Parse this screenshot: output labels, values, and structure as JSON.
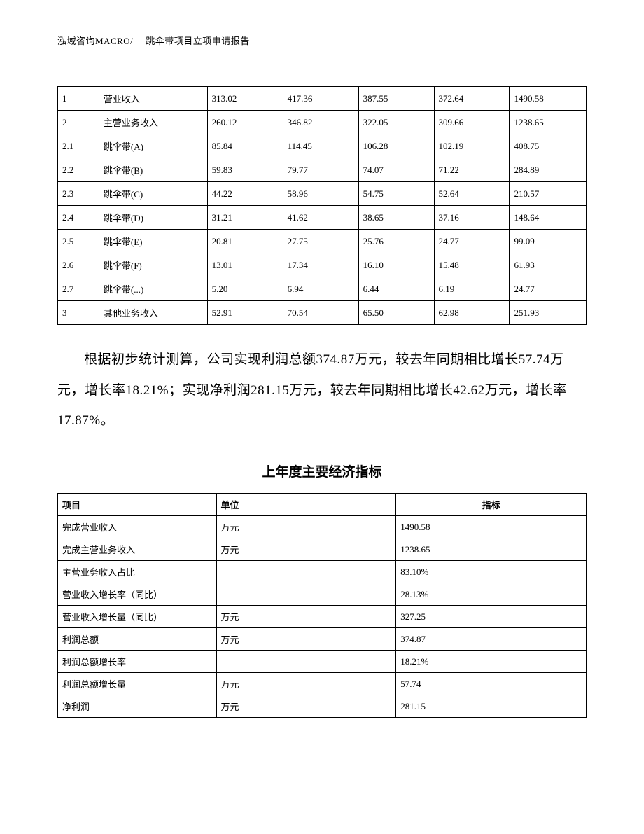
{
  "header": {
    "left": "泓域咨询MACRO/",
    "right": "跳伞带项目立项申请报告"
  },
  "table1": {
    "rows": [
      [
        "1",
        "营业收入",
        "313.02",
        "417.36",
        "387.55",
        "372.64",
        "1490.58"
      ],
      [
        "2",
        "主营业务收入",
        "260.12",
        "346.82",
        "322.05",
        "309.66",
        "1238.65"
      ],
      [
        "2.1",
        "跳伞带(A)",
        "85.84",
        "114.45",
        "106.28",
        "102.19",
        "408.75"
      ],
      [
        "2.2",
        "跳伞带(B)",
        "59.83",
        "79.77",
        "74.07",
        "71.22",
        "284.89"
      ],
      [
        "2.3",
        "跳伞带(C)",
        "44.22",
        "58.96",
        "54.75",
        "52.64",
        "210.57"
      ],
      [
        "2.4",
        "跳伞带(D)",
        "31.21",
        "41.62",
        "38.65",
        "37.16",
        "148.64"
      ],
      [
        "2.5",
        "跳伞带(E)",
        "20.81",
        "27.75",
        "25.76",
        "24.77",
        "99.09"
      ],
      [
        "2.6",
        "跳伞带(F)",
        "13.01",
        "17.34",
        "16.10",
        "15.48",
        "61.93"
      ],
      [
        "2.7",
        "跳伞带(...)",
        "5.20",
        "6.94",
        "6.44",
        "6.19",
        "24.77"
      ],
      [
        "3",
        "其他业务收入",
        "52.91",
        "70.54",
        "65.50",
        "62.98",
        "251.93"
      ]
    ]
  },
  "paragraph": "根据初步统计测算，公司实现利润总额374.87万元，较去年同期相比增长57.74万元，增长率18.21%；实现净利润281.15万元，较去年同期相比增长42.62万元，增长率17.87%。",
  "table2_title": "上年度主要经济指标",
  "table2": {
    "columns": [
      "项目",
      "单位",
      "指标"
    ],
    "rows": [
      [
        "完成营业收入",
        "万元",
        "1490.58"
      ],
      [
        "完成主营业务收入",
        "万元",
        "1238.65"
      ],
      [
        "主营业务收入占比",
        "",
        "83.10%"
      ],
      [
        "营业收入增长率（同比）",
        "",
        "28.13%"
      ],
      [
        "营业收入增长量（同比）",
        "万元",
        "327.25"
      ],
      [
        "利润总额",
        "万元",
        "374.87"
      ],
      [
        "利润总额增长率",
        "",
        "18.21%"
      ],
      [
        "利润总额增长量",
        "万元",
        "57.74"
      ],
      [
        "净利润",
        "万元",
        "281.15"
      ]
    ]
  }
}
